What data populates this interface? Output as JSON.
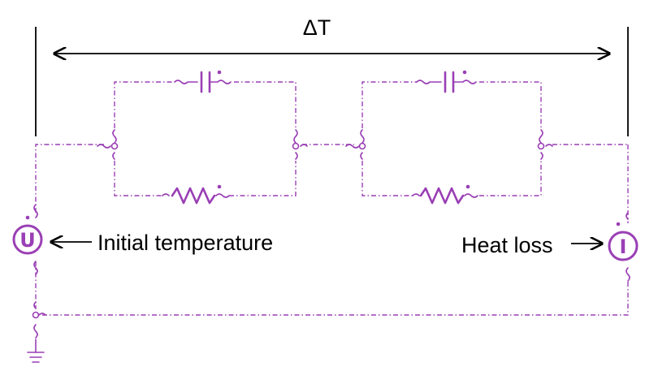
{
  "labels": {
    "delta_t": "ΔT",
    "initial_temperature": "Initial temperature",
    "heat_loss": "Heat loss"
  },
  "sources": {
    "voltage_symbol": "U",
    "current_symbol": "I"
  },
  "colors": {
    "component": "#9a3fb5",
    "annotation": "#000000",
    "background": "#ffffff"
  },
  "icons": {
    "capacitor": "capacitor-icon",
    "resistor": "resistor-icon",
    "voltage_source": "voltage-source-icon",
    "current_source": "current-source-icon",
    "ground": "ground-icon"
  }
}
